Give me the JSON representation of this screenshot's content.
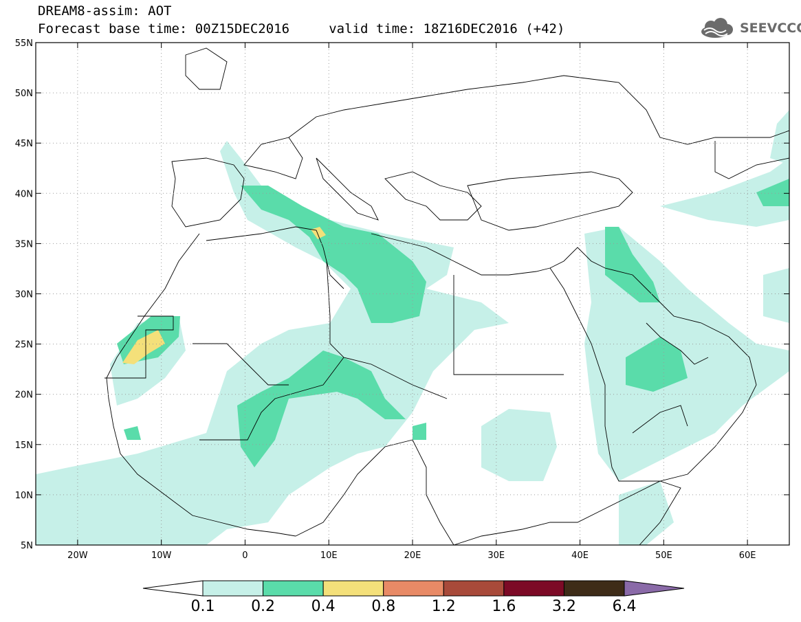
{
  "header": {
    "line1": "DREAM8-assim: AOT",
    "line2": "Forecast base time: 00Z15DEC2016     valid time: 18Z16DEC2016 (+42)"
  },
  "logo": {
    "text": "SEEVCCC",
    "icon": "cloud-logo-icon"
  },
  "map": {
    "lon_range": [
      -25,
      65
    ],
    "lat_range": [
      5,
      55
    ],
    "lon_ticks": [
      {
        "value": -20,
        "label": "20W"
      },
      {
        "value": -10,
        "label": "10W"
      },
      {
        "value": 0,
        "label": "0"
      },
      {
        "value": 10,
        "label": "10E"
      },
      {
        "value": 20,
        "label": "20E"
      },
      {
        "value": 30,
        "label": "30E"
      },
      {
        "value": 40,
        "label": "40E"
      },
      {
        "value": 50,
        "label": "50E"
      },
      {
        "value": 60,
        "label": "60E"
      }
    ],
    "lat_ticks": [
      {
        "value": 55,
        "label": "55N"
      },
      {
        "value": 50,
        "label": "50N"
      },
      {
        "value": 45,
        "label": "45N"
      },
      {
        "value": 40,
        "label": "40N"
      },
      {
        "value": 35,
        "label": "35N"
      },
      {
        "value": 30,
        "label": "30N"
      },
      {
        "value": 25,
        "label": "25N"
      },
      {
        "value": 20,
        "label": "20N"
      },
      {
        "value": 15,
        "label": "15N"
      },
      {
        "value": 10,
        "label": "10N"
      },
      {
        "value": 5,
        "label": "5N"
      }
    ],
    "gridlines": "dotted"
  },
  "colorbar": {
    "bins": [
      {
        "from": 0.1,
        "to": 0.2,
        "color": "#c6f0e8"
      },
      {
        "from": 0.2,
        "to": 0.4,
        "color": "#5adcaa"
      },
      {
        "from": 0.4,
        "to": 0.8,
        "color": "#f4e07a"
      },
      {
        "from": 0.8,
        "to": 1.2,
        "color": "#e88a66"
      },
      {
        "from": 1.2,
        "to": 1.6,
        "color": "#a84a3a"
      },
      {
        "from": 1.6,
        "to": 3.2,
        "color": "#7c0a26"
      },
      {
        "from": 3.2,
        "to": 6.4,
        "color": "#3e2c18"
      }
    ],
    "under_color": "#ffffff",
    "over_color": "#8a6aa8",
    "labels": [
      "0.1",
      "0.2",
      "0.4",
      "0.8",
      "1.2",
      "1.6",
      "3.2",
      "6.4"
    ]
  }
}
